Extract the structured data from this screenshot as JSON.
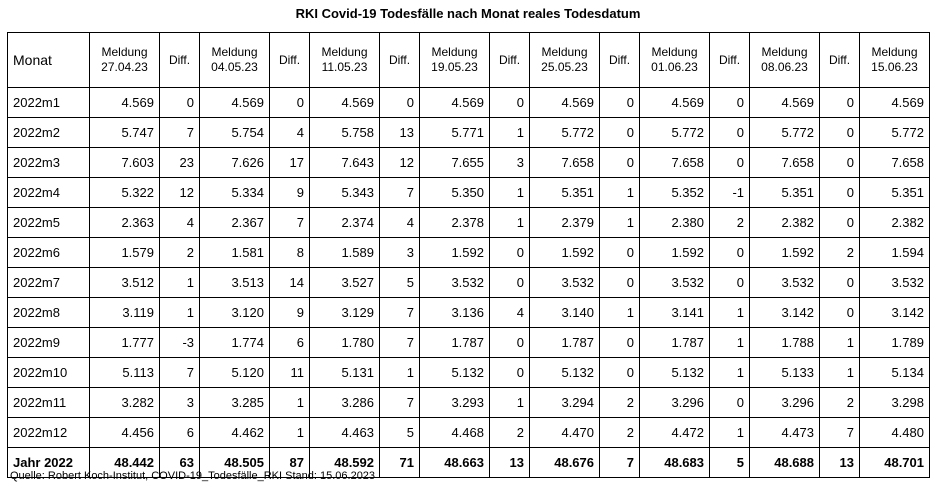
{
  "title": "RKI Covid-19 Todesfälle nach Monat reales Todesdatum",
  "header": {
    "monat": "Monat",
    "columns": [
      {
        "line1": "Meldung",
        "line2": "27.04.23"
      },
      {
        "diff": "Diff."
      },
      {
        "line1": "Meldung",
        "line2": "04.05.23"
      },
      {
        "diff": "Diff."
      },
      {
        "line1": "Meldung",
        "line2": "11.05.23"
      },
      {
        "diff": "Diff."
      },
      {
        "line1": "Meldung",
        "line2": "19.05.23"
      },
      {
        "diff": "Diff."
      },
      {
        "line1": "Meldung",
        "line2": "25.05.23"
      },
      {
        "diff": "Diff."
      },
      {
        "line1": "Meldung",
        "line2": "01.06.23"
      },
      {
        "diff": "Diff."
      },
      {
        "line1": "Meldung",
        "line2": "08.06.23"
      },
      {
        "diff": "Diff."
      },
      {
        "line1": "Meldung",
        "line2": "15.06.23"
      }
    ]
  },
  "rows": [
    {
      "label": "2022m1",
      "cells": [
        "4.569",
        "0",
        "4.569",
        "0",
        "4.569",
        "0",
        "4.569",
        "0",
        "4.569",
        "0",
        "4.569",
        "0",
        "4.569",
        "0",
        "4.569"
      ]
    },
    {
      "label": "2022m2",
      "cells": [
        "5.747",
        "7",
        "5.754",
        "4",
        "5.758",
        "13",
        "5.771",
        "1",
        "5.772",
        "0",
        "5.772",
        "0",
        "5.772",
        "0",
        "5.772"
      ]
    },
    {
      "label": "2022m3",
      "cells": [
        "7.603",
        "23",
        "7.626",
        "17",
        "7.643",
        "12",
        "7.655",
        "3",
        "7.658",
        "0",
        "7.658",
        "0",
        "7.658",
        "0",
        "7.658"
      ]
    },
    {
      "label": "2022m4",
      "cells": [
        "5.322",
        "12",
        "5.334",
        "9",
        "5.343",
        "7",
        "5.350",
        "1",
        "5.351",
        "1",
        "5.352",
        "-1",
        "5.351",
        "0",
        "5.351"
      ]
    },
    {
      "label": "2022m5",
      "cells": [
        "2.363",
        "4",
        "2.367",
        "7",
        "2.374",
        "4",
        "2.378",
        "1",
        "2.379",
        "1",
        "2.380",
        "2",
        "2.382",
        "0",
        "2.382"
      ]
    },
    {
      "label": "2022m6",
      "cells": [
        "1.579",
        "2",
        "1.581",
        "8",
        "1.589",
        "3",
        "1.592",
        "0",
        "1.592",
        "0",
        "1.592",
        "0",
        "1.592",
        "2",
        "1.594"
      ]
    },
    {
      "label": "2022m7",
      "cells": [
        "3.512",
        "1",
        "3.513",
        "14",
        "3.527",
        "5",
        "3.532",
        "0",
        "3.532",
        "0",
        "3.532",
        "0",
        "3.532",
        "0",
        "3.532"
      ]
    },
    {
      "label": "2022m8",
      "cells": [
        "3.119",
        "1",
        "3.120",
        "9",
        "3.129",
        "7",
        "3.136",
        "4",
        "3.140",
        "1",
        "3.141",
        "1",
        "3.142",
        "0",
        "3.142"
      ]
    },
    {
      "label": "2022m9",
      "cells": [
        "1.777",
        "-3",
        "1.774",
        "6",
        "1.780",
        "7",
        "1.787",
        "0",
        "1.787",
        "0",
        "1.787",
        "1",
        "1.788",
        "1",
        "1.789"
      ]
    },
    {
      "label": "2022m10",
      "cells": [
        "5.113",
        "7",
        "5.120",
        "11",
        "5.131",
        "1",
        "5.132",
        "0",
        "5.132",
        "0",
        "5.132",
        "1",
        "5.133",
        "1",
        "5.134"
      ]
    },
    {
      "label": "2022m11",
      "cells": [
        "3.282",
        "3",
        "3.285",
        "1",
        "3.286",
        "7",
        "3.293",
        "1",
        "3.294",
        "2",
        "3.296",
        "0",
        "3.296",
        "2",
        "3.298"
      ]
    },
    {
      "label": "2022m12",
      "cells": [
        "4.456",
        "6",
        "4.462",
        "1",
        "4.463",
        "5",
        "4.468",
        "2",
        "4.470",
        "2",
        "4.472",
        "1",
        "4.473",
        "7",
        "4.480"
      ]
    }
  ],
  "total": {
    "label": "Jahr 2022",
    "cells": [
      "48.442",
      "63",
      "48.505",
      "87",
      "48.592",
      "71",
      "48.663",
      "13",
      "48.676",
      "7",
      "48.683",
      "5",
      "48.688",
      "13",
      "48.701"
    ]
  },
  "source": "Quelle: Robert Koch-Institut, COVID-19_Todesfälle_RKI Stand: 15.06.2023"
}
